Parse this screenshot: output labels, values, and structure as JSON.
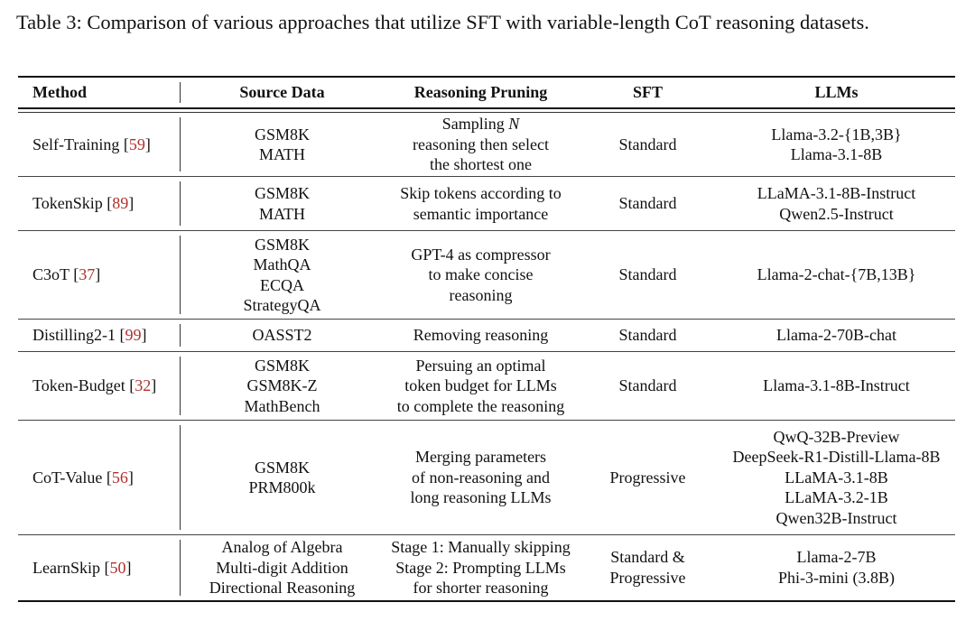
{
  "caption": "Table 3: Comparison of various approaches that utilize SFT with variable-length CoT reasoning datasets.",
  "colors": {
    "citation": "#b0302a"
  },
  "headers": [
    "Method",
    "Source Data",
    "Reasoning Pruning",
    "SFT",
    "LLMs"
  ],
  "rows": [
    {
      "method": "Self-Training",
      "ref": "59",
      "source": [
        "GSM8K",
        "MATH"
      ],
      "pruning": [
        "Sampling N",
        "reasoning then select",
        "the shortest one"
      ],
      "sft": [
        "Standard"
      ],
      "llms": [
        "Llama-3.2-{1B,3B}",
        "Llama-3.1-8B"
      ]
    },
    {
      "method": "TokenSkip",
      "ref": "89",
      "source": [
        "GSM8K",
        "MATH"
      ],
      "pruning": [
        "Skip tokens according to",
        "semantic importance"
      ],
      "sft": [
        "Standard"
      ],
      "llms": [
        "LLaMA-3.1-8B-Instruct",
        "Qwen2.5-Instruct"
      ]
    },
    {
      "method": "C3oT",
      "ref": "37",
      "source": [
        "GSM8K",
        "MathQA",
        "ECQA",
        "StrategyQA"
      ],
      "pruning": [
        "GPT-4 as compressor",
        "to make concise",
        "reasoning"
      ],
      "sft": [
        "Standard"
      ],
      "llms": [
        "Llama-2-chat-{7B,13B}"
      ]
    },
    {
      "method": "Distilling2-1",
      "ref": "99",
      "source": [
        "OASST2"
      ],
      "pruning": [
        "Removing reasoning"
      ],
      "sft": [
        "Standard"
      ],
      "llms": [
        "Llama-2-70B-chat"
      ]
    },
    {
      "method": "Token-Budget",
      "ref": "32",
      "source": [
        "GSM8K",
        "GSM8K-Z",
        "MathBench"
      ],
      "pruning": [
        "Persuing an optimal",
        "token budget for LLMs",
        "to complete the reasoning"
      ],
      "sft": [
        "Standard"
      ],
      "llms": [
        "Llama-3.1-8B-Instruct"
      ]
    },
    {
      "method": "CoT-Value",
      "ref": "56",
      "source": [
        "GSM8K",
        "PRM800k"
      ],
      "pruning": [
        "Merging parameters",
        "of non-reasoning and",
        "long reasoning LLMs"
      ],
      "sft": [
        "Progressive"
      ],
      "llms": [
        "QwQ-32B-Preview",
        "DeepSeek-R1-Distill-Llama-8B",
        "LLaMA-3.1-8B",
        "LLaMA-3.2-1B",
        "Qwen32B-Instruct"
      ]
    },
    {
      "method": "LearnSkip",
      "ref": "50",
      "source": [
        "Analog of Algebra",
        "Multi-digit Addition",
        "Directional Reasoning"
      ],
      "pruning": [
        "Stage 1: Manually skipping",
        "Stage 2: Prompting LLMs",
        "for shorter reasoning"
      ],
      "sft": [
        "Standard &",
        "Progressive"
      ],
      "llms": [
        "Llama-2-7B",
        "Phi-3-mini (3.8B)"
      ]
    }
  ]
}
